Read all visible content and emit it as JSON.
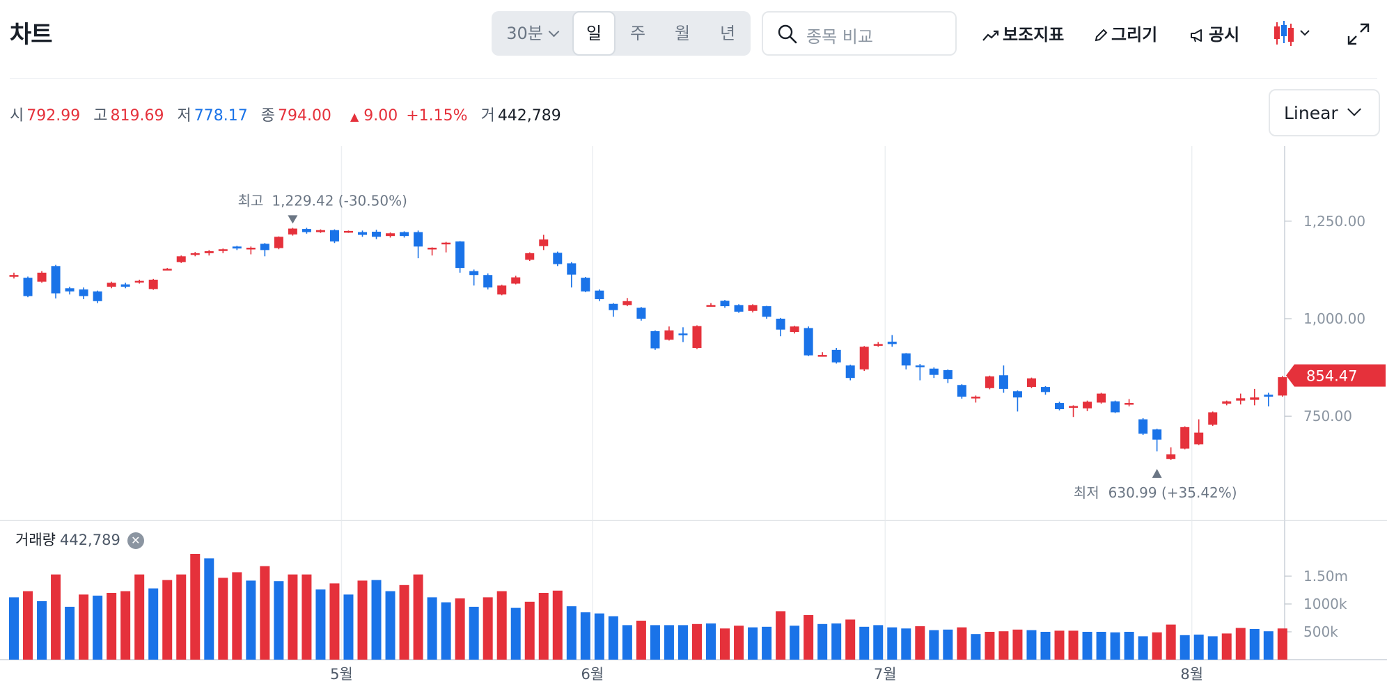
{
  "header": {
    "title": "차트",
    "period_minute": "30분",
    "periods": [
      "일",
      "주",
      "월",
      "년"
    ],
    "active_period": "일",
    "search_placeholder": "종목 비교",
    "tools": [
      "보조지표",
      "그리기",
      "공시"
    ]
  },
  "ohlc": {
    "open_label": "시",
    "open": "792.99",
    "high_label": "고",
    "high": "819.69",
    "low_label": "저",
    "low": "778.17",
    "close_label": "종",
    "close": "794.00",
    "change": "9.00",
    "change_pct": "+1.15%",
    "volume_label": "거",
    "volume": "442,789"
  },
  "scale_select": "Linear",
  "volume_panel": {
    "label": "거래량",
    "value": "442,789"
  },
  "colors": {
    "up": "#e5313b",
    "down": "#1a73e8",
    "grid": "#eceff2"
  },
  "chart_data": {
    "type": "candlestick",
    "price_axis": {
      "ticks": [
        1250,
        1000,
        750
      ],
      "tick_labels": [
        "1,250.00",
        "1,000.00",
        "750.00"
      ]
    },
    "volume_axis": {
      "ticks": [
        1500000,
        1000000,
        500000
      ],
      "tick_labels": [
        "1.50m",
        "1000k",
        "500k"
      ]
    },
    "months": [
      {
        "label": "5월",
        "index": 23.5
      },
      {
        "label": "6월",
        "index": 41.5
      },
      {
        "label": "7월",
        "index": 62.5
      },
      {
        "label": "8월",
        "index": 84.5
      }
    ],
    "last_price": "854.47",
    "high_annotation": {
      "label": "최고",
      "text": "1,229.42 (-30.50%)",
      "index": 20,
      "price": 1229.42
    },
    "low_annotation": {
      "label": "최저",
      "text": "630.99 (+35.42%)",
      "index": 82,
      "price": 630.99
    },
    "candles": [
      [
        1110,
        1112,
        1103,
        1118
      ],
      [
        1105,
        1058,
        1055,
        1108
      ],
      [
        1095,
        1118,
        1092,
        1122
      ],
      [
        1135,
        1065,
        1052,
        1138
      ],
      [
        1078,
        1070,
        1062,
        1082
      ],
      [
        1075,
        1058,
        1050,
        1080
      ],
      [
        1070,
        1045,
        1040,
        1072
      ],
      [
        1082,
        1092,
        1078,
        1095
      ],
      [
        1088,
        1082,
        1078,
        1092
      ],
      [
        1093,
        1097,
        1090,
        1100
      ],
      [
        1076,
        1100,
        1074,
        1102
      ],
      [
        1126,
        1128,
        1124,
        1130
      ],
      [
        1145,
        1160,
        1143,
        1162
      ],
      [
        1166,
        1168,
        1160,
        1171
      ],
      [
        1168,
        1173,
        1162,
        1176
      ],
      [
        1174,
        1178,
        1168,
        1180
      ],
      [
        1185,
        1180,
        1176,
        1187
      ],
      [
        1180,
        1182,
        1165,
        1185
      ],
      [
        1192,
        1176,
        1160,
        1194
      ],
      [
        1181,
        1210,
        1178,
        1211
      ],
      [
        1216,
        1231,
        1213,
        1233
      ],
      [
        1230,
        1222,
        1218,
        1233
      ],
      [
        1222,
        1227,
        1220,
        1229
      ],
      [
        1227,
        1198,
        1194,
        1229
      ],
      [
        1223,
        1225,
        1220,
        1226
      ],
      [
        1222,
        1215,
        1210,
        1226
      ],
      [
        1223,
        1210,
        1204,
        1228
      ],
      [
        1212,
        1219,
        1208,
        1221
      ],
      [
        1222,
        1212,
        1208,
        1224
      ],
      [
        1222,
        1185,
        1155,
        1226
      ],
      [
        1180,
        1182,
        1162,
        1183
      ],
      [
        1193,
        1195,
        1170,
        1197
      ],
      [
        1198,
        1130,
        1118,
        1199
      ],
      [
        1122,
        1112,
        1085,
        1126
      ],
      [
        1112,
        1080,
        1075,
        1116
      ],
      [
        1062,
        1085,
        1060,
        1087
      ],
      [
        1090,
        1106,
        1088,
        1110
      ],
      [
        1151,
        1168,
        1148,
        1170
      ],
      [
        1186,
        1203,
        1176,
        1215
      ],
      [
        1169,
        1140,
        1135,
        1172
      ],
      [
        1142,
        1113,
        1080,
        1145
      ],
      [
        1105,
        1070,
        1068,
        1107
      ],
      [
        1072,
        1050,
        1045,
        1075
      ],
      [
        1038,
        1022,
        1005,
        1040
      ],
      [
        1035,
        1045,
        1032,
        1053
      ],
      [
        1028,
        1000,
        995,
        1030
      ],
      [
        968,
        924,
        920,
        970
      ],
      [
        946,
        970,
        944,
        980
      ],
      [
        962,
        958,
        940,
        978
      ],
      [
        925,
        981,
        922,
        983
      ],
      [
        1034,
        1035,
        1033,
        1040
      ],
      [
        1046,
        1032,
        1028,
        1048
      ],
      [
        1035,
        1018,
        1015,
        1037
      ],
      [
        1020,
        1035,
        1016,
        1037
      ],
      [
        1032,
        1005,
        1000,
        1033
      ],
      [
        1000,
        972,
        955,
        1002
      ],
      [
        966,
        980,
        962,
        982
      ],
      [
        976,
        906,
        904,
        980
      ],
      [
        904,
        907,
        903,
        914
      ],
      [
        920,
        888,
        885,
        925
      ],
      [
        880,
        848,
        842,
        882
      ],
      [
        870,
        928,
        866,
        930
      ],
      [
        931,
        935,
        928,
        940
      ],
      [
        941,
        935,
        928,
        958
      ],
      [
        911,
        880,
        870,
        912
      ],
      [
        880,
        876,
        842,
        884
      ],
      [
        872,
        856,
        848,
        875
      ],
      [
        868,
        845,
        835,
        870
      ],
      [
        830,
        800,
        795,
        832
      ],
      [
        798,
        800,
        785,
        803
      ],
      [
        822,
        852,
        819,
        854
      ],
      [
        855,
        820,
        810,
        880
      ],
      [
        814,
        798,
        762,
        816
      ],
      [
        825,
        847,
        822,
        849
      ],
      [
        825,
        812,
        805,
        827
      ],
      [
        784,
        768,
        765,
        787
      ],
      [
        774,
        776,
        748,
        778
      ],
      [
        770,
        787,
        763,
        790
      ],
      [
        785,
        808,
        782,
        810
      ],
      [
        788,
        760,
        758,
        790
      ],
      [
        783,
        784,
        775,
        794
      ],
      [
        742,
        705,
        702,
        745
      ],
      [
        716,
        690,
        660,
        718
      ],
      [
        640,
        652,
        638,
        670
      ],
      [
        667,
        722,
        665,
        724
      ],
      [
        678,
        708,
        676,
        742
      ],
      [
        728,
        760,
        725,
        762
      ],
      [
        782,
        788,
        778,
        790
      ],
      [
        790,
        796,
        780,
        808
      ],
      [
        792,
        798,
        778,
        820
      ],
      [
        805,
        800,
        775,
        810
      ],
      [
        803,
        850,
        800,
        853
      ]
    ],
    "volumes": [
      [
        1120000,
        "down"
      ],
      [
        1230000,
        "up"
      ],
      [
        1050000,
        "down"
      ],
      [
        1530000,
        "up"
      ],
      [
        950000,
        "down"
      ],
      [
        1170000,
        "up"
      ],
      [
        1150000,
        "down"
      ],
      [
        1200000,
        "up"
      ],
      [
        1230000,
        "up"
      ],
      [
        1530000,
        "up"
      ],
      [
        1280000,
        "down"
      ],
      [
        1430000,
        "up"
      ],
      [
        1530000,
        "up"
      ],
      [
        1900000,
        "up"
      ],
      [
        1820000,
        "down"
      ],
      [
        1470000,
        "up"
      ],
      [
        1570000,
        "up"
      ],
      [
        1420000,
        "down"
      ],
      [
        1680000,
        "up"
      ],
      [
        1410000,
        "down"
      ],
      [
        1530000,
        "up"
      ],
      [
        1530000,
        "up"
      ],
      [
        1260000,
        "down"
      ],
      [
        1370000,
        "up"
      ],
      [
        1170000,
        "down"
      ],
      [
        1420000,
        "up"
      ],
      [
        1430000,
        "down"
      ],
      [
        1230000,
        "down"
      ],
      [
        1340000,
        "up"
      ],
      [
        1530000,
        "up"
      ],
      [
        1120000,
        "down"
      ],
      [
        1030000,
        "down"
      ],
      [
        1100000,
        "up"
      ],
      [
        950000,
        "down"
      ],
      [
        1120000,
        "up"
      ],
      [
        1230000,
        "up"
      ],
      [
        930000,
        "down"
      ],
      [
        1040000,
        "up"
      ],
      [
        1200000,
        "up"
      ],
      [
        1240000,
        "up"
      ],
      [
        960000,
        "down"
      ],
      [
        850000,
        "down"
      ],
      [
        830000,
        "down"
      ],
      [
        780000,
        "down"
      ],
      [
        620000,
        "down"
      ],
      [
        700000,
        "up"
      ],
      [
        620000,
        "down"
      ],
      [
        620000,
        "down"
      ],
      [
        620000,
        "down"
      ],
      [
        640000,
        "up"
      ],
      [
        650000,
        "down"
      ],
      [
        560000,
        "up"
      ],
      [
        610000,
        "up"
      ],
      [
        580000,
        "down"
      ],
      [
        590000,
        "down"
      ],
      [
        870000,
        "up"
      ],
      [
        610000,
        "down"
      ],
      [
        800000,
        "up"
      ],
      [
        640000,
        "down"
      ],
      [
        650000,
        "down"
      ],
      [
        720000,
        "up"
      ],
      [
        590000,
        "down"
      ],
      [
        620000,
        "down"
      ],
      [
        580000,
        "down"
      ],
      [
        560000,
        "down"
      ],
      [
        600000,
        "up"
      ],
      [
        530000,
        "down"
      ],
      [
        540000,
        "down"
      ],
      [
        580000,
        "up"
      ],
      [
        460000,
        "down"
      ],
      [
        500000,
        "up"
      ],
      [
        510000,
        "up"
      ],
      [
        540000,
        "up"
      ],
      [
        530000,
        "down"
      ],
      [
        500000,
        "down"
      ],
      [
        520000,
        "up"
      ],
      [
        520000,
        "up"
      ],
      [
        500000,
        "down"
      ],
      [
        500000,
        "down"
      ],
      [
        490000,
        "down"
      ],
      [
        500000,
        "down"
      ],
      [
        420000,
        "down"
      ],
      [
        490000,
        "up"
      ],
      [
        630000,
        "up"
      ],
      [
        440000,
        "down"
      ],
      [
        450000,
        "down"
      ],
      [
        420000,
        "down"
      ],
      [
        470000,
        "up"
      ],
      [
        570000,
        "up"
      ],
      [
        550000,
        "down"
      ],
      [
        510000,
        "down"
      ],
      [
        560000,
        "up"
      ]
    ]
  }
}
